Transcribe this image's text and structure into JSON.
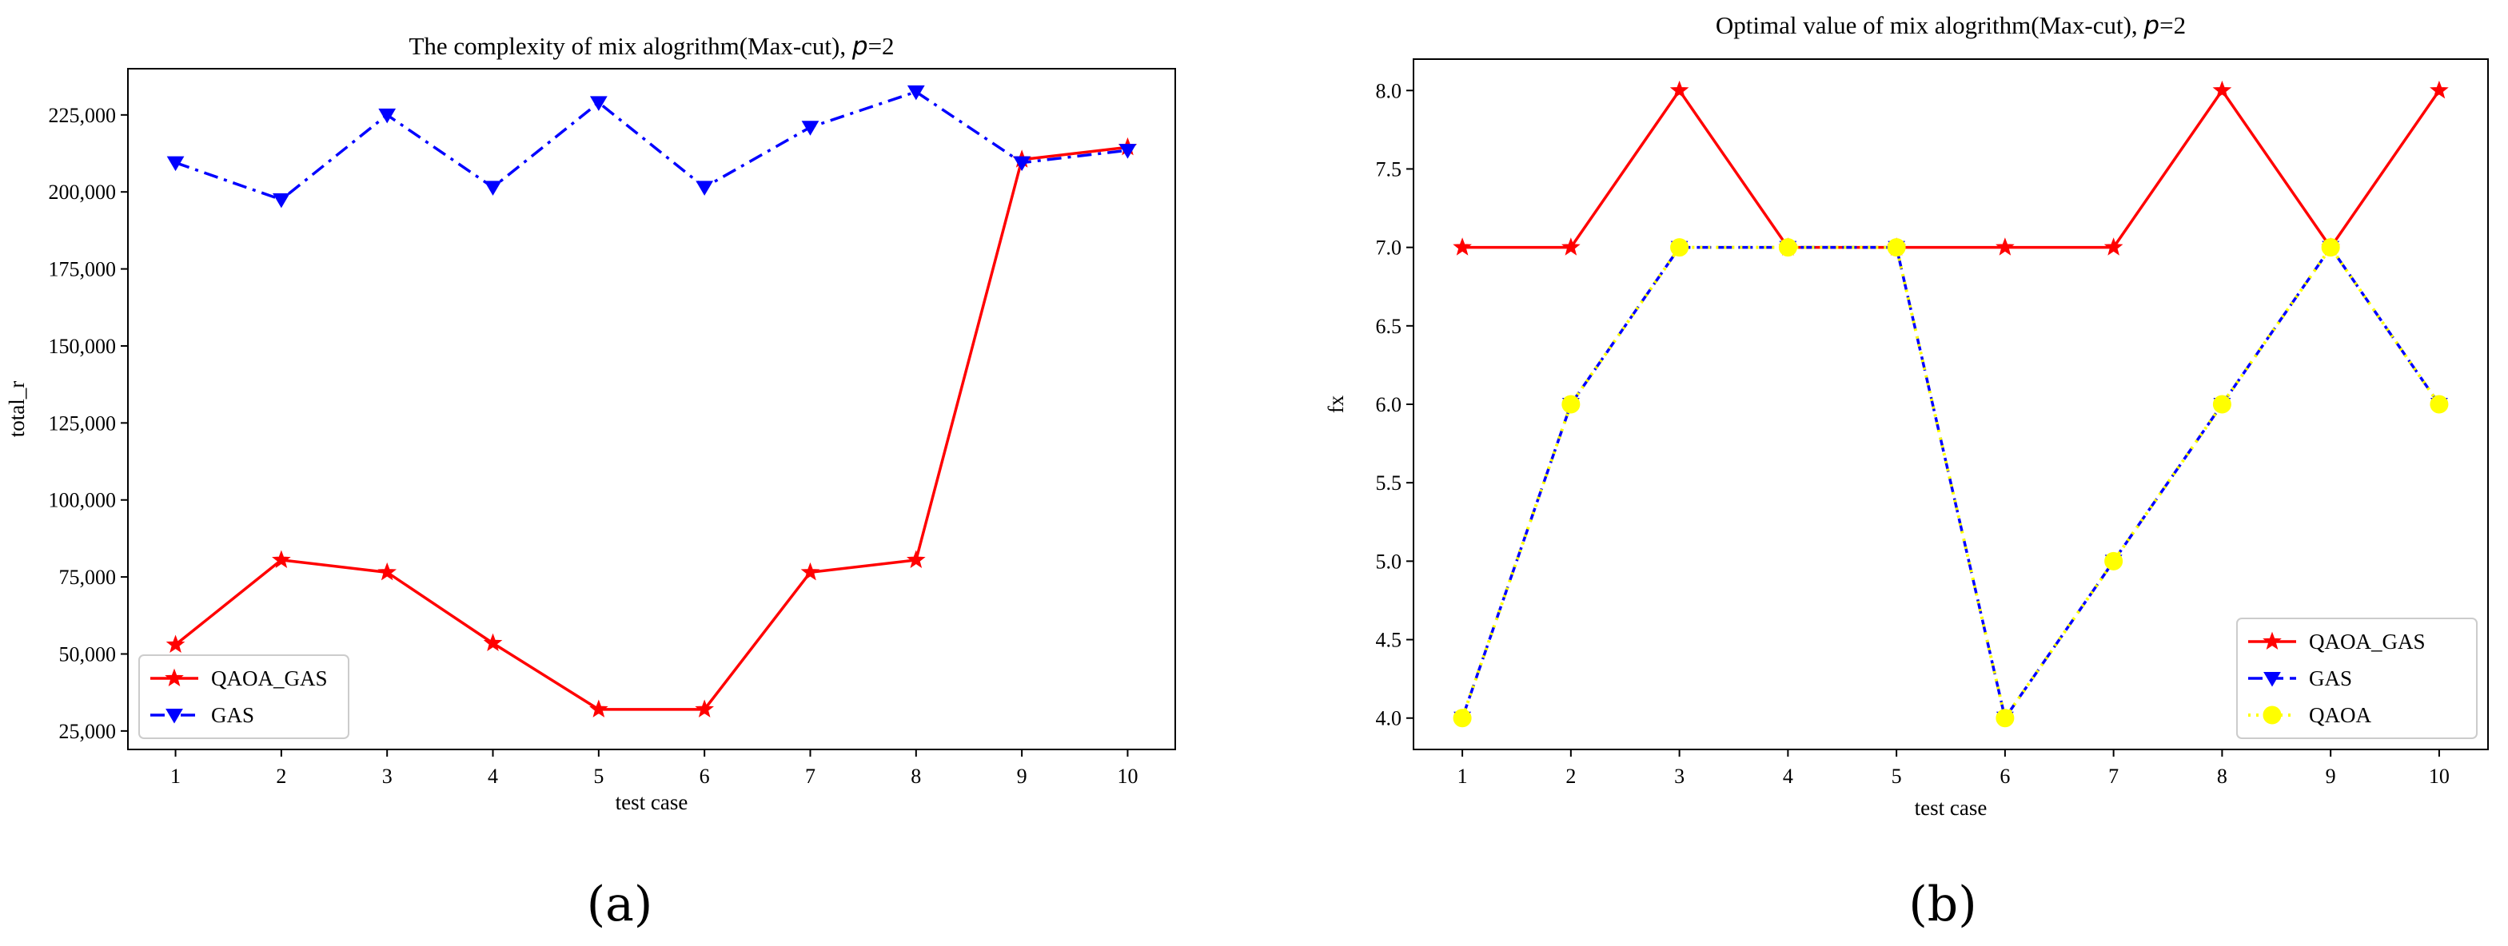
{
  "chart_data": [
    {
      "type": "line",
      "title": "The complexity of mix alogrithm(Max-cut), ",
      "title_var": "p",
      "title_suffix": "=2",
      "xlabel": "test case",
      "ylabel": "total_r",
      "panel_label": "(a)",
      "x": [
        1,
        2,
        3,
        4,
        5,
        6,
        7,
        8,
        9,
        10
      ],
      "xticks": [
        "1",
        "2",
        "3",
        "4",
        "5",
        "6",
        "7",
        "8",
        "9",
        "10"
      ],
      "yticks": [
        "25,000",
        "50,000",
        "75,000",
        "100,000",
        "125,000",
        "150,000",
        "175,000",
        "200,000",
        "225,000"
      ],
      "ytick_values": [
        25000,
        50000,
        75000,
        100000,
        125000,
        150000,
        175000,
        200000,
        225000
      ],
      "ylim": [
        19000,
        240000
      ],
      "xlim": [
        0.55,
        10.45
      ],
      "legend_position": "lower-left",
      "series": [
        {
          "name": "QAOA_GAS",
          "color": "#ff0000",
          "dash": "solid",
          "marker": "star",
          "values": [
            53000,
            80500,
            76500,
            53500,
            32000,
            32000,
            76500,
            80500,
            210500,
            214500
          ]
        },
        {
          "name": "GAS",
          "color": "#0000ff",
          "dash": "dashdot",
          "marker": "triangle-down",
          "values": [
            209500,
            197500,
            225000,
            201500,
            229000,
            201500,
            221000,
            232500,
            209500,
            213500
          ]
        }
      ]
    },
    {
      "type": "line",
      "title": "Optimal value of mix alogrithm(Max-cut), ",
      "title_var": "p",
      "title_suffix": "=2",
      "xlabel": "test case",
      "ylabel": "fx",
      "panel_label": "(b)",
      "x": [
        1,
        2,
        3,
        4,
        5,
        6,
        7,
        8,
        9,
        10
      ],
      "xticks": [
        "1",
        "2",
        "3",
        "4",
        "5",
        "6",
        "7",
        "8",
        "9",
        "10"
      ],
      "yticks": [
        "4.0",
        "4.5",
        "5.0",
        "5.5",
        "6.0",
        "6.5",
        "7.0",
        "7.5",
        "8.0"
      ],
      "ytick_values": [
        4.0,
        4.5,
        5.0,
        5.5,
        6.0,
        6.5,
        7.0,
        7.5,
        8.0
      ],
      "ylim": [
        3.8,
        8.2
      ],
      "xlim": [
        0.55,
        10.45
      ],
      "legend_position": "lower-right",
      "series": [
        {
          "name": "QAOA_GAS",
          "color": "#ff0000",
          "dash": "solid",
          "marker": "star",
          "values": [
            7,
            7,
            8,
            7,
            7,
            7,
            7,
            8,
            7,
            8
          ]
        },
        {
          "name": "GAS",
          "color": "#0000ff",
          "dash": "dashed",
          "marker": "triangle-down",
          "values": [
            4,
            6,
            7,
            7,
            7,
            4,
            5,
            6,
            7,
            6
          ]
        },
        {
          "name": "QAOA",
          "color": "#ffff00",
          "dash": "dotted",
          "marker": "circle",
          "values": [
            4,
            6,
            7,
            7,
            7,
            4,
            5,
            6,
            7,
            6
          ]
        }
      ]
    }
  ]
}
